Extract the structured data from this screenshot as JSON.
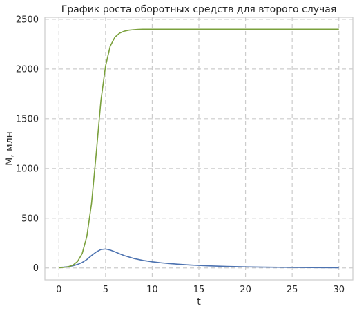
{
  "chart_data": {
    "type": "line",
    "title": "График роста оборотных средств для второго случая",
    "xlabel": "t",
    "ylabel": "M, млн",
    "xlim": [
      -1.5,
      31.5
    ],
    "ylim": [
      -120,
      2520
    ],
    "xticks": [
      0,
      5,
      10,
      15,
      20,
      25,
      30
    ],
    "yticks": [
      0,
      500,
      1000,
      1500,
      2000,
      2500
    ],
    "grid": true,
    "legend": "none",
    "series": [
      {
        "color": "#4c72b0",
        "x": [
          0,
          0.5,
          1,
          1.5,
          2,
          2.5,
          3,
          3.5,
          4,
          4.5,
          5,
          5.5,
          6,
          6.5,
          7,
          8,
          9,
          10,
          11,
          12,
          13,
          14,
          15,
          16,
          18,
          20,
          22,
          25,
          28,
          30
        ],
        "y": [
          5,
          8,
          13,
          22,
          35,
          55,
          85,
          125,
          160,
          185,
          190,
          180,
          162,
          142,
          124,
          96,
          76,
          62,
          51,
          43,
          36,
          30,
          25,
          21,
          15,
          11,
          8,
          5,
          3,
          2
        ]
      },
      {
        "color": "#7aa03c",
        "x": [
          0,
          0.5,
          1,
          1.5,
          2,
          2.5,
          3,
          3.5,
          4,
          4.5,
          5,
          5.5,
          6,
          6.5,
          7,
          7.5,
          8,
          8.5,
          9,
          10,
          12,
          15,
          20,
          25,
          30
        ],
        "y": [
          2,
          5,
          12,
          28,
          65,
          145,
          320,
          650,
          1150,
          1680,
          2030,
          2230,
          2320,
          2360,
          2380,
          2390,
          2395,
          2398,
          2400,
          2400,
          2400,
          2400,
          2400,
          2400,
          2400
        ]
      }
    ]
  }
}
